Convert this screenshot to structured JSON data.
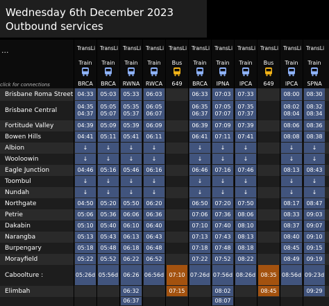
{
  "title": {
    "line1": "Wednesday 6th December 2023",
    "line2": "Outbound services"
  },
  "more_label": "...",
  "connections_hint": "click for connections",
  "columns": [
    {
      "operator": "TransLi",
      "type": "Train",
      "route": "BRCA",
      "mode": "train"
    },
    {
      "operator": "TransLi",
      "type": "Train",
      "route": "BRCA",
      "mode": "train"
    },
    {
      "operator": "TransLi",
      "type": "Train",
      "route": "RWNA",
      "mode": "train"
    },
    {
      "operator": "TransLi",
      "type": "Train",
      "route": "RWCA",
      "mode": "train"
    },
    {
      "operator": "TransLi",
      "type": "Bus",
      "route": "649",
      "mode": "bus"
    },
    {
      "operator": "TransLi",
      "type": "Train",
      "route": "BRCA",
      "mode": "train"
    },
    {
      "operator": "TransLi",
      "type": "Train",
      "route": "IPNA",
      "mode": "train"
    },
    {
      "operator": "TransLi",
      "type": "Train",
      "route": "IPCA",
      "mode": "train"
    },
    {
      "operator": "TransLi",
      "type": "Bus",
      "route": "649",
      "mode": "bus"
    },
    {
      "operator": "TransLi",
      "type": "Train",
      "route": "IPCA",
      "mode": "train"
    },
    {
      "operator": "TransLi",
      "type": "Train",
      "route": "SPNA",
      "mode": "train"
    }
  ],
  "rows": [
    {
      "station": "Brisbane Roma Street",
      "cells": [
        [
          "04:33"
        ],
        [
          "05:03"
        ],
        [
          "05:33"
        ],
        [
          "06:03"
        ],
        [],
        [
          "06:33"
        ],
        [
          "07:03"
        ],
        [
          "07:33"
        ],
        [],
        [
          "08:00"
        ],
        [
          "08:30"
        ]
      ]
    },
    {
      "station": "Brisbane Central",
      "cells": [
        [
          "04:35",
          "04:37"
        ],
        [
          "05:05",
          "05:07"
        ],
        [
          "05:35",
          "05:37"
        ],
        [
          "06:05",
          "06:07"
        ],
        [],
        [
          "06:35",
          "06:37"
        ],
        [
          "07:05",
          "07:07"
        ],
        [
          "07:35",
          "07:37"
        ],
        [],
        [
          "08:02",
          "08:04"
        ],
        [
          "08:32",
          "08:34"
        ]
      ]
    },
    {
      "station": "Fortitude Valley",
      "cells": [
        [
          "04:39"
        ],
        [
          "05:09"
        ],
        [
          "05:39"
        ],
        [
          "06:09"
        ],
        [],
        [
          "06:39"
        ],
        [
          "07:09"
        ],
        [
          "07:39"
        ],
        [],
        [
          "08:06"
        ],
        [
          "08:36"
        ]
      ]
    },
    {
      "station": "Bowen Hills",
      "cells": [
        [
          "04:41"
        ],
        [
          "05:11"
        ],
        [
          "05:41"
        ],
        [
          "06:11"
        ],
        [],
        [
          "06:41"
        ],
        [
          "07:11"
        ],
        [
          "07:41"
        ],
        [],
        [
          "08:08"
        ],
        [
          "08:38"
        ]
      ]
    },
    {
      "station": "Albion",
      "cells": [
        [
          "↓"
        ],
        [
          "↓"
        ],
        [
          "↓"
        ],
        [
          "↓"
        ],
        [],
        [
          "↓"
        ],
        [
          "↓"
        ],
        [
          "↓"
        ],
        [],
        [
          "↓"
        ],
        [
          "↓"
        ]
      ]
    },
    {
      "station": "Wooloowin",
      "cells": [
        [
          "↓"
        ],
        [
          "↓"
        ],
        [
          "↓"
        ],
        [
          "↓"
        ],
        [],
        [
          "↓"
        ],
        [
          "↓"
        ],
        [
          "↓"
        ],
        [],
        [
          "↓"
        ],
        [
          "↓"
        ]
      ]
    },
    {
      "station": "Eagle Junction",
      "cells": [
        [
          "04:46"
        ],
        [
          "05:16"
        ],
        [
          "05:46"
        ],
        [
          "06:16"
        ],
        [],
        [
          "06:46"
        ],
        [
          "07:16"
        ],
        [
          "07:46"
        ],
        [],
        [
          "08:13"
        ],
        [
          "08:43"
        ]
      ]
    },
    {
      "station": "Toombul",
      "cells": [
        [
          "↓"
        ],
        [
          "↓"
        ],
        [
          "↓"
        ],
        [
          "↓"
        ],
        [],
        [
          "↓"
        ],
        [
          "↓"
        ],
        [
          "↓"
        ],
        [],
        [
          "↓"
        ],
        [
          "↓"
        ]
      ]
    },
    {
      "station": "Nundah",
      "cells": [
        [
          "↓"
        ],
        [
          "↓"
        ],
        [
          "↓"
        ],
        [
          "↓"
        ],
        [],
        [
          "↓"
        ],
        [
          "↓"
        ],
        [
          "↓"
        ],
        [],
        [
          "↓"
        ],
        [
          "↓"
        ]
      ]
    },
    {
      "station": "Northgate",
      "cells": [
        [
          "04:50"
        ],
        [
          "05:20"
        ],
        [
          "05:50"
        ],
        [
          "06:20"
        ],
        [],
        [
          "06:50"
        ],
        [
          "07:20"
        ],
        [
          "07:50"
        ],
        [],
        [
          "08:17"
        ],
        [
          "08:47"
        ]
      ]
    },
    {
      "station": "Petrie",
      "cells": [
        [
          "05:06"
        ],
        [
          "05:36"
        ],
        [
          "06:06"
        ],
        [
          "06:36"
        ],
        [],
        [
          "07:06"
        ],
        [
          "07:36"
        ],
        [
          "08:06"
        ],
        [],
        [
          "08:33"
        ],
        [
          "09:03"
        ]
      ]
    },
    {
      "station": "Dakabin",
      "cells": [
        [
          "05:10"
        ],
        [
          "05:40"
        ],
        [
          "06:10"
        ],
        [
          "06:40"
        ],
        [],
        [
          "07:10"
        ],
        [
          "07:40"
        ],
        [
          "08:10"
        ],
        [],
        [
          "08:37"
        ],
        [
          "09:07"
        ]
      ]
    },
    {
      "station": "Narangba",
      "cells": [
        [
          "05:13"
        ],
        [
          "05:43"
        ],
        [
          "06:13"
        ],
        [
          "06:43"
        ],
        [],
        [
          "07:13"
        ],
        [
          "07:43"
        ],
        [
          "08:13"
        ],
        [],
        [
          "08:40"
        ],
        [
          "09:10"
        ]
      ]
    },
    {
      "station": "Burpengary",
      "cells": [
        [
          "05:18"
        ],
        [
          "05:48"
        ],
        [
          "06:18"
        ],
        [
          "06:48"
        ],
        [],
        [
          "07:18"
        ],
        [
          "07:48"
        ],
        [
          "08:18"
        ],
        [],
        [
          "08:45"
        ],
        [
          "09:15"
        ]
      ]
    },
    {
      "station": "Morayfield",
      "cells": [
        [
          "05:22"
        ],
        [
          "05:52"
        ],
        [
          "06:22"
        ],
        [
          "06:52"
        ],
        [],
        [
          "07:22"
        ],
        [
          "07:52"
        ],
        [
          "08:22"
        ],
        [],
        [
          "08:49"
        ],
        [
          "09:19"
        ]
      ]
    },
    {
      "station": "Caboolture :",
      "cells": [
        [
          "05:26d"
        ],
        [
          "05:56d"
        ],
        [
          "06:26"
        ],
        [
          "06:56d"
        ],
        [
          "07:10"
        ],
        [
          "07:26d"
        ],
        [
          "07:56d"
        ],
        [
          "08:26d"
        ],
        [
          "08:35"
        ],
        [
          "08:56d"
        ],
        [
          "09:23d"
        ]
      ]
    },
    {
      "station": "Elimbah",
      "cells": [
        [],
        [],
        [
          "06:32"
        ],
        [],
        [
          "07:15"
        ],
        [],
        [
          "08:02"
        ],
        [],
        [
          "08:45"
        ],
        [],
        [
          "09:29"
        ]
      ]
    },
    {
      "station": "",
      "cells": [
        [],
        [],
        [
          "06:37"
        ],
        [],
        [],
        [],
        [
          "08:07"
        ],
        [],
        [],
        [],
        []
      ]
    }
  ],
  "colors": {
    "train_cell": "#41547d",
    "bus_cell": "#a3520f",
    "row_dark": "#1d1d1d",
    "row_light": "#2a2a2a",
    "train_icon": "#8fb4ff",
    "bus_icon": "#f2b318"
  }
}
